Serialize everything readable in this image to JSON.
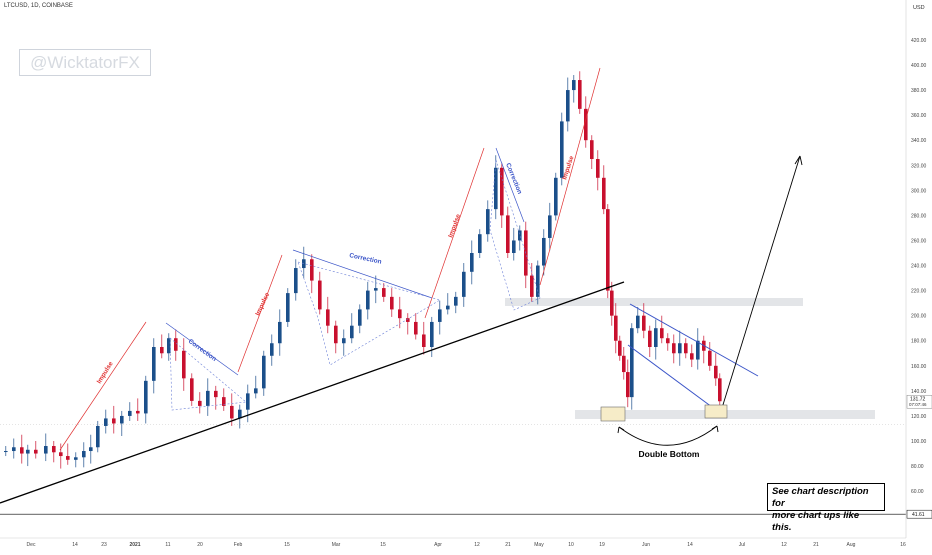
{
  "header": {
    "symbol": "LTCUSD, 1D, COINBASE",
    "currency": "USD"
  },
  "watermark": "@WicktatorFX",
  "description_box": {
    "line1": "See chart description for",
    "line2": "more chart ups like this."
  },
  "chart_data": {
    "type": "candlestick",
    "title": "",
    "price_axis": {
      "ticks": [
        "420.00",
        "400.00",
        "380.00",
        "360.00",
        "340.00",
        "320.00",
        "300.00",
        "280.00",
        "260.00",
        "240.00",
        "220.00",
        "200.00",
        "180.00",
        "160.00",
        "140.00",
        "120.00",
        "100.00",
        "80.00",
        "60.00"
      ],
      "range": [
        37,
        432
      ],
      "last_price": "131.72",
      "countdown": "07:07:46",
      "lower_marker": "41.61"
    },
    "time_axis": {
      "ticks": [
        "Dec",
        "14",
        "23",
        "2021",
        "11",
        "20",
        "Feb",
        "15",
        "Mar",
        "15",
        "Apr",
        "12",
        "21",
        "May",
        "10",
        "19",
        "Jun",
        "14",
        "Jul",
        "12",
        "21",
        "Aug",
        "16"
      ]
    },
    "candles": [],
    "annotations": {
      "impulse_labels": [
        "Impulse",
        "Impulse",
        "Impulse",
        "Impulse"
      ],
      "correction_labels": [
        "Correction",
        "Correction",
        "Correction",
        "Correction"
      ],
      "double_bottom": "Double Bottom"
    },
    "colors": {
      "up": "#1b4f8a",
      "down": "#c8102e",
      "support": "#000000",
      "impulse": "#e03030",
      "correction": "#3b55c8",
      "zone": "#e3e5e8",
      "box": "#f6ecc8"
    }
  }
}
